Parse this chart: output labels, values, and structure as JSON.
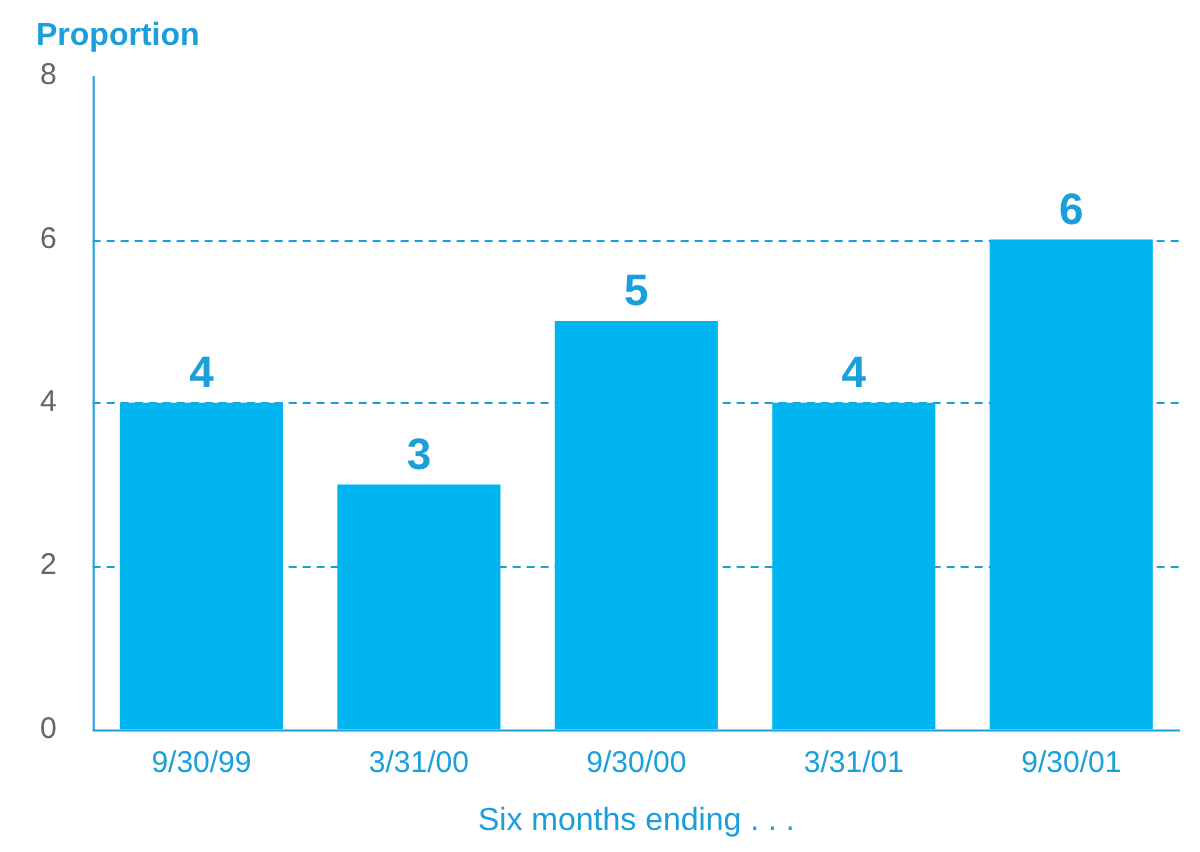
{
  "chart_data": {
    "type": "bar",
    "ylabel": "Proportion",
    "xlabel": "Six months ending . . .",
    "categories": [
      "9/30/99",
      "3/31/00",
      "9/30/00",
      "3/31/01",
      "9/30/01"
    ],
    "values": [
      4,
      3,
      5,
      4,
      6
    ],
    "color": "#00b5ef",
    "ylim": [
      0,
      8
    ],
    "yticks": [
      0,
      2,
      4,
      6,
      8
    ],
    "grid": "y",
    "data_labels": true
  }
}
